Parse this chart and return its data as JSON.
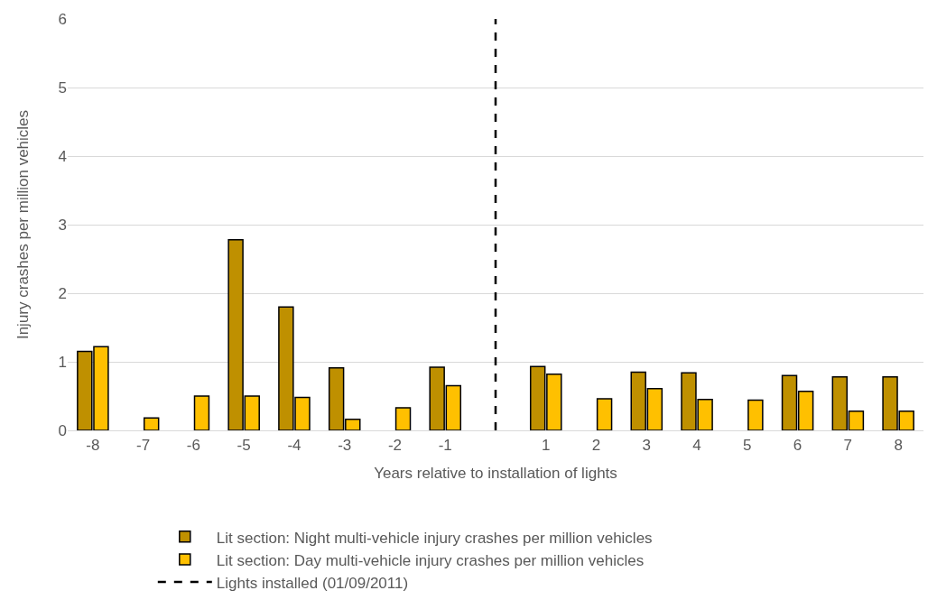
{
  "chart_data": {
    "type": "bar",
    "xlabel": "Years relative to installation of lights",
    "ylabel": "Injury crashes per million vehicles",
    "x": [
      -8,
      -7,
      -6,
      -5,
      -4,
      -3,
      -2,
      -1,
      1,
      2,
      3,
      4,
      5,
      6,
      7,
      8
    ],
    "xlim": [
      -8.5,
      8.5
    ],
    "xticks": [
      -8,
      -7,
      -6,
      -5,
      -4,
      -3,
      -2,
      -1,
      1,
      2,
      3,
      4,
      5,
      6,
      7,
      8
    ],
    "series": [
      {
        "name": "Lit section: Night multi-vehicle injury crashes per million vehicles",
        "color": "#bf9000",
        "values": [
          1.15,
          null,
          null,
          2.78,
          1.8,
          0.91,
          null,
          0.92,
          0.93,
          null,
          0.85,
          0.84,
          null,
          0.8,
          0.78,
          0.78
        ]
      },
      {
        "name": "Lit section: Day multi-vehicle injury crashes per million vehicles",
        "color": "#ffc000",
        "values": [
          1.22,
          0.18,
          0.5,
          0.5,
          0.48,
          0.16,
          0.33,
          0.65,
          0.82,
          0.46,
          0.61,
          0.45,
          0.44,
          0.57,
          0.28,
          0.28
        ]
      }
    ],
    "ylim": [
      0,
      6
    ],
    "yticks": [
      0,
      1,
      2,
      3,
      4,
      5,
      6
    ],
    "grid": "y",
    "legend": "bottom",
    "ref_lines": [
      {
        "axis": "x",
        "value": 0,
        "label": "Lights installed (01/09/2011)",
        "color": "#000000",
        "line_style": "dashed"
      }
    ]
  }
}
